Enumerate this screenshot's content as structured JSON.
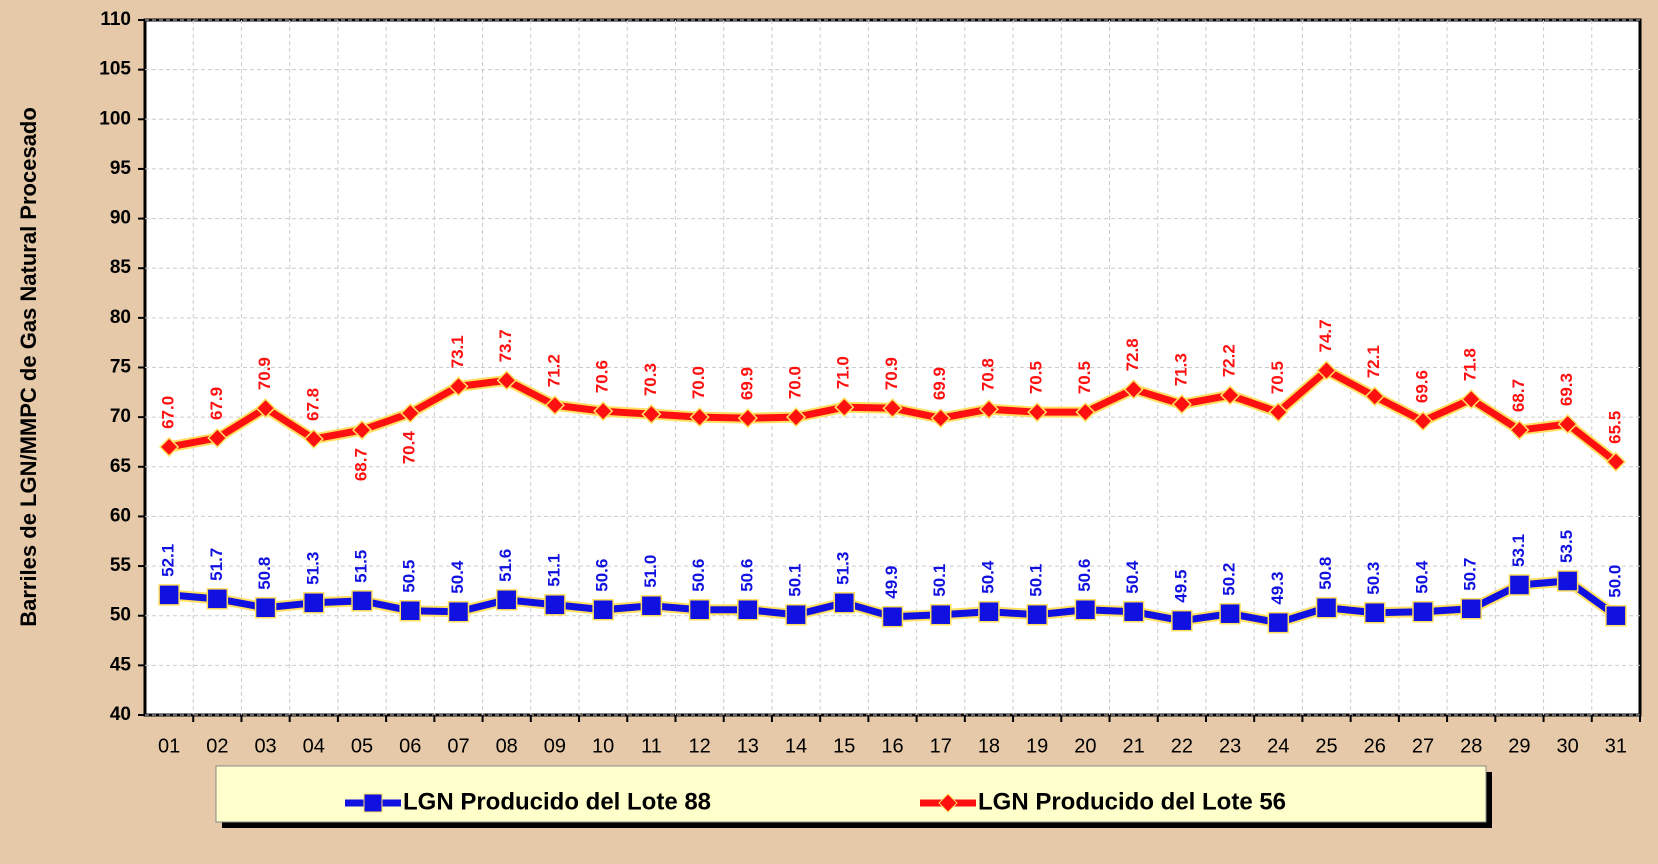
{
  "chart_data": {
    "type": "line",
    "y_label": "Barriles de LGN/MMPC de Gas Natural Procesado",
    "categories": [
      "01",
      "02",
      "03",
      "04",
      "05",
      "06",
      "07",
      "08",
      "09",
      "10",
      "11",
      "12",
      "13",
      "14",
      "15",
      "16",
      "17",
      "18",
      "19",
      "20",
      "21",
      "22",
      "23",
      "24",
      "25",
      "26",
      "27",
      "28",
      "29",
      "30",
      "31"
    ],
    "series": [
      {
        "name": "LGN Producido del Lote 88",
        "color": "#1010e0",
        "marker": "square",
        "values": [
          52.1,
          51.7,
          50.8,
          51.3,
          51.5,
          50.5,
          50.4,
          51.6,
          51.1,
          50.6,
          51.0,
          50.6,
          50.6,
          50.1,
          51.3,
          49.9,
          50.1,
          50.4,
          50.1,
          50.6,
          50.4,
          49.5,
          50.2,
          49.3,
          50.8,
          50.3,
          50.4,
          50.7,
          53.1,
          53.5,
          50.0
        ],
        "value_labels": [
          "52.1",
          "51.7",
          "50.8",
          "51.3",
          "51.5",
          "50.5",
          "50.4",
          "51.6",
          "51.1",
          "50.6",
          "51.0",
          "50.6",
          "50.6",
          "50.1",
          "51.3",
          "49.9",
          "50.1",
          "50.4",
          "50.1",
          "50.6",
          "50.4",
          "49.5",
          "50.2",
          "49.3",
          "50.8",
          "50.3",
          "50.4",
          "50.7",
          "53.1",
          "53.5",
          "50.0"
        ]
      },
      {
        "name": "LGN Producido del Lote 56",
        "color": "#ff1010",
        "marker": "diamond",
        "values": [
          67.0,
          67.9,
          70.9,
          67.8,
          68.7,
          70.4,
          73.1,
          73.7,
          71.2,
          70.6,
          70.3,
          70.0,
          69.9,
          70.0,
          71.0,
          70.9,
          69.9,
          70.8,
          70.5,
          70.5,
          72.8,
          71.3,
          72.2,
          70.5,
          74.7,
          72.1,
          69.6,
          71.8,
          68.7,
          69.3,
          65.5
        ],
        "value_labels": [
          "67.0",
          "67.9",
          "70.9",
          "67.8",
          "68.7",
          "70.4",
          "73.1",
          "73.7",
          "71.2",
          "70.6",
          "70.3",
          "70.0",
          "69.9",
          "70.0",
          "71.0",
          "70.9",
          "69.9",
          "70.8",
          "70.5",
          "70.5",
          "72.8",
          "71.3",
          "72.2",
          "70.5",
          "74.7",
          "72.1",
          "69.6",
          "71.8",
          "68.7",
          "69.3",
          "65.5"
        ]
      }
    ],
    "ylim": [
      40,
      110
    ],
    "yticks": [
      40,
      45,
      50,
      55,
      60,
      65,
      70,
      75,
      80,
      85,
      90,
      95,
      100,
      105,
      110
    ],
    "grid": true
  }
}
